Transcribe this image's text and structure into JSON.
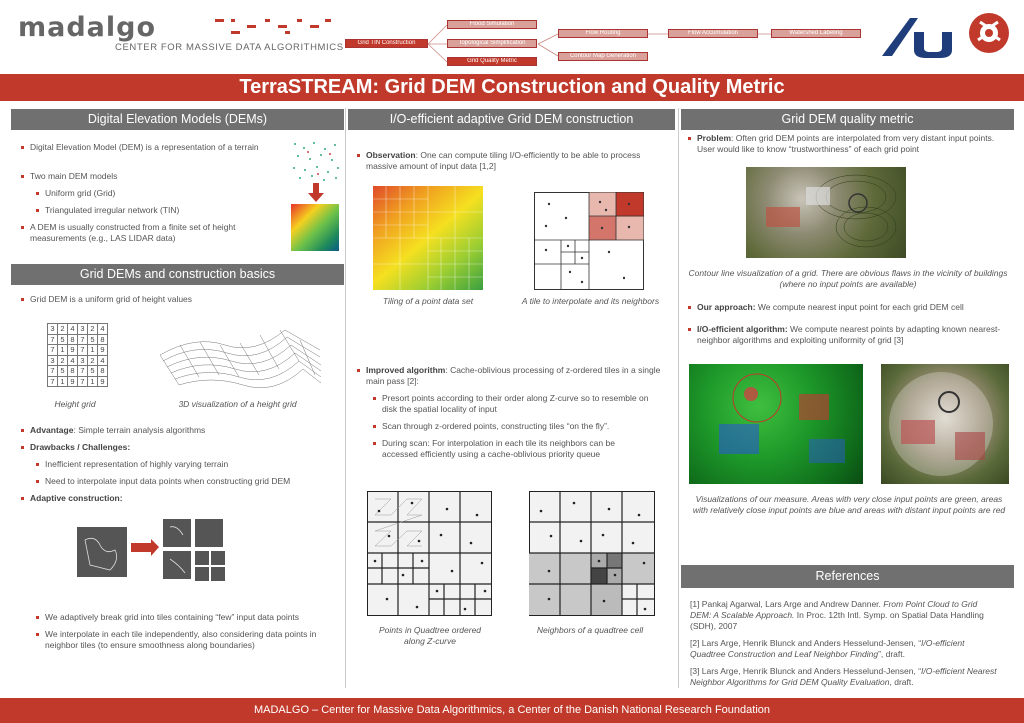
{
  "header": {
    "logo_word": "madalgo",
    "logo_sub": "CENTER FOR MASSIVE DATA ALGORITHMICS",
    "pipeline": [
      "Flood Simulation",
      "Grid TIN Construction",
      "Topological Simplification",
      "Flow Routing",
      "Flow Accumulation",
      "Watershed Labeling",
      "Contour Map Generation",
      "Grid Quality Metric"
    ]
  },
  "title": "TerraSTREAM: Grid DEM Construction and Quality Metric",
  "col1": {
    "head1": "Digital Elevation Models (DEMs)",
    "b1": "Digital Elevation Model (DEM) is a representation of a terrain",
    "b2": "Two main DEM models",
    "b2a": "Uniform grid (Grid)",
    "b2b": "Triangulated irregular network (TIN)",
    "b3": "A DEM is usually constructed from a finite set of height measurements (e.g., LAS LIDAR data)",
    "head2": "Grid DEMs and construction basics",
    "b4": "Grid DEM is a uniform grid of height values",
    "grid_rows": [
      [
        "3",
        "2",
        "4",
        "3",
        "2",
        "4"
      ],
      [
        "7",
        "5",
        "8",
        "7",
        "5",
        "8"
      ],
      [
        "7",
        "1",
        "9",
        "7",
        "1",
        "9"
      ],
      [
        "3",
        "2",
        "4",
        "3",
        "2",
        "4"
      ],
      [
        "7",
        "5",
        "8",
        "7",
        "5",
        "8"
      ],
      [
        "7",
        "1",
        "9",
        "7",
        "1",
        "9"
      ]
    ],
    "cap1": "Height grid",
    "cap2": "3D visualization of a height grid",
    "adv_b": "Advantage",
    "adv": ": Simple terrain analysis algorithms",
    "draw": "Drawbacks / Challenges:",
    "d1": "Inefficient representation of highly varying terrain",
    "d2": "Need to interpolate input data points when constructing grid DEM",
    "adapt": "Adaptive construction:",
    "a1": "We adaptively break grid into tiles containing “few” input data points",
    "a2": "We interpolate in each tile independently, also considering data points in neighbor tiles (to ensure smoothness along boundaries)"
  },
  "col2": {
    "head": "I/O-efficient adaptive Grid DEM construction",
    "obs_b": "Observation",
    "obs": ": One can compute tiling I/O-efficiently to be able to process massive amount of input data [1,2]",
    "cap1": "Tiling of a point data set",
    "cap2": "A tile to interpolate and its neighbors",
    "imp_b": "Improved algorithm",
    "imp": ": Cache-oblivious processing of z-ordered  tiles in a single main pass [2]:",
    "i1": "Presort points according to their order along Z-curve so to resemble on disk the spatial locality of input",
    "i2": "Scan through z-ordered points, constructing tiles “on the fly”.",
    "i3": "During scan: For interpolation in each tile its neighbors can be accessed  efficiently using a cache-oblivious priority queue",
    "cap3": "Points in Quadtree ordered along Z-curve",
    "cap4": "Neighbors of a quadtree cell"
  },
  "col3": {
    "head": "Grid DEM quality metric",
    "prob_b": "Problem",
    "prob": ": Often grid DEM points are interpolated from very distant input points. User would like to know “trustworthiness” of each grid point",
    "cap1": "Contour line visualization of a grid. There are obvious flaws in the vicinity of buildings (where no input points are available)",
    "app_b": "Our approach:",
    "app": " We compute nearest input point for each grid DEM cell",
    "io_b": "I/O-efficient algorithm:",
    "io": " We compute nearest points by adapting known nearest-neighbor algorithms and exploiting uniformity of grid [3]",
    "cap2": "Visualizations of our measure.  Areas with very close input points are green, areas with relatively close input points are blue and areas with distant input points are red",
    "refs_head": "References",
    "r1a": "[1] Pankaj Agarwal, Lars Arge and Andrew Danner. ",
    "r1b": "From Point Cloud to Grid DEM: A Scalable Approach.",
    "r1c": " In Proc. 12th Intl. Symp. on Spatial Data Handling (SDH), 2007",
    "r2a": "[2] Lars Arge, Henrik Blunck and Anders Hesselund-Jensen, “",
    "r2b": "I/O-efficient Quadtree Construction and Leaf Neighbor Finding",
    "r2c": "”, draft.",
    "r3a": "[3] Lars Arge, Henrik Blunck and Anders Hesselund-Jensen, “",
    "r3b": "I/O-efficient Nearest Neighbor Algorithms for Grid DEM Quality Evaluation",
    "r3c": ", draft."
  },
  "footer": "MADALGO – Center for Massive Data Algorithmics, a Center of the Danish National Research Foundation",
  "colors": {
    "accent": "#c0392b",
    "header_gray": "#707070",
    "aarhus_blue": "#1f3d7a"
  }
}
